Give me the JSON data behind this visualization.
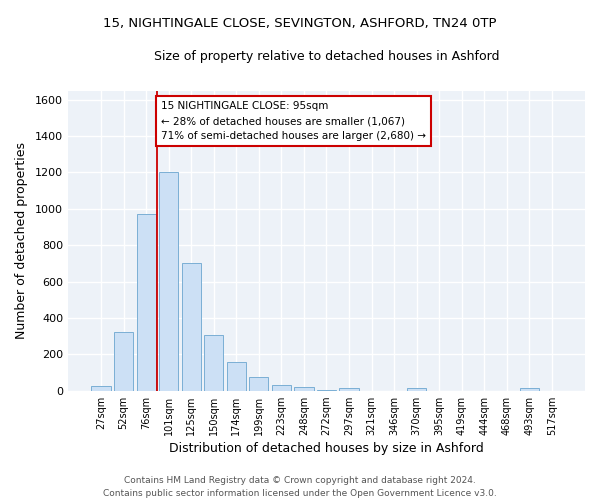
{
  "title1": "15, NIGHTINGALE CLOSE, SEVINGTON, ASHFORD, TN24 0TP",
  "title2": "Size of property relative to detached houses in Ashford",
  "xlabel": "Distribution of detached houses by size in Ashford",
  "ylabel": "Number of detached properties",
  "categories": [
    "27sqm",
    "52sqm",
    "76sqm",
    "101sqm",
    "125sqm",
    "150sqm",
    "174sqm",
    "199sqm",
    "223sqm",
    "248sqm",
    "272sqm",
    "297sqm",
    "321sqm",
    "346sqm",
    "370sqm",
    "395sqm",
    "419sqm",
    "444sqm",
    "468sqm",
    "493sqm",
    "517sqm"
  ],
  "values": [
    25,
    325,
    970,
    1200,
    700,
    305,
    155,
    75,
    30,
    20,
    5,
    15,
    0,
    0,
    15,
    0,
    0,
    0,
    0,
    15,
    0
  ],
  "bar_color": "#cce0f5",
  "bar_edge_color": "#7aafd4",
  "vline_color": "#cc0000",
  "vline_index": 2.5,
  "annotation_text": "15 NIGHTINGALE CLOSE: 95sqm\n← 28% of detached houses are smaller (1,067)\n71% of semi-detached houses are larger (2,680) →",
  "annotation_box_color": "white",
  "annotation_box_edge": "#cc0000",
  "ylim": [
    0,
    1650
  ],
  "yticks": [
    0,
    200,
    400,
    600,
    800,
    1000,
    1200,
    1400,
    1600
  ],
  "bg_color": "#edf2f8",
  "grid_color": "white",
  "footer": "Contains HM Land Registry data © Crown copyright and database right 2024.\nContains public sector information licensed under the Open Government Licence v3.0."
}
